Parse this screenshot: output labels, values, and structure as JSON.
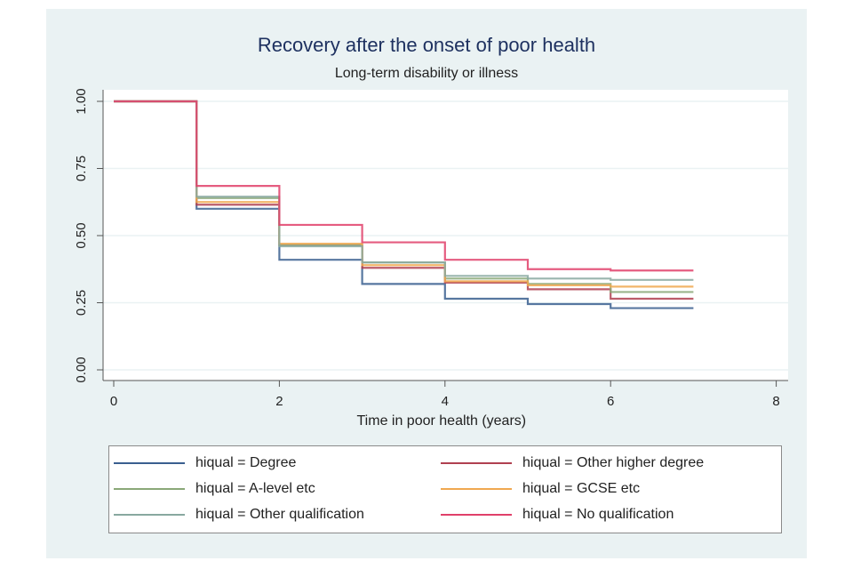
{
  "chart_data": {
    "type": "line",
    "subtype": "step",
    "title": "Recovery after the onset of poor health",
    "subtitle": "Long-term disability or illness",
    "xlabel": "Time in poor health (years)",
    "ylabel": "",
    "xlim": [
      0,
      8
    ],
    "ylim": [
      0,
      1
    ],
    "xticks": [
      0,
      2,
      4,
      6,
      8
    ],
    "xtick_labels": [
      "0",
      "2",
      "4",
      "6",
      "8"
    ],
    "yticks": [
      0,
      0.25,
      0.5,
      0.75,
      1.0
    ],
    "ytick_labels": [
      "0.00",
      "0.25",
      "0.50",
      "0.75",
      "1.00"
    ],
    "grid": true,
    "legend_position": "bottom",
    "x": [
      0,
      1,
      2,
      3,
      4,
      5,
      6,
      7
    ],
    "series": [
      {
        "name": "hiqual = Degree",
        "color": "#3a5f8f",
        "values": [
          1.0,
          0.6,
          0.41,
          0.32,
          0.265,
          0.245,
          0.23,
          0.23
        ]
      },
      {
        "name": "hiqual = Other higher degree",
        "color": "#b04050",
        "values": [
          1.0,
          0.615,
          0.465,
          0.38,
          0.325,
          0.3,
          0.265,
          0.265
        ]
      },
      {
        "name": "hiqual = A-level etc",
        "color": "#8aa878",
        "values": [
          1.0,
          0.64,
          0.465,
          0.4,
          0.34,
          0.32,
          0.29,
          0.29
        ]
      },
      {
        "name": "hiqual = GCSE etc",
        "color": "#f0a850",
        "values": [
          1.0,
          0.625,
          0.47,
          0.39,
          0.33,
          0.315,
          0.31,
          0.31
        ]
      },
      {
        "name": "hiqual = Other qualification",
        "color": "#88a8a0",
        "values": [
          1.0,
          0.645,
          0.46,
          0.4,
          0.35,
          0.34,
          0.335,
          0.335
        ]
      },
      {
        "name": "hiqual = No qualification",
        "color": "#e0406a",
        "values": [
          1.0,
          0.685,
          0.54,
          0.475,
          0.41,
          0.375,
          0.37,
          0.37
        ]
      }
    ]
  },
  "legend": {
    "items": [
      {
        "label": "hiqual = Degree",
        "color": "#3a5f8f"
      },
      {
        "label": "hiqual = Other higher degree",
        "color": "#b04050"
      },
      {
        "label": "hiqual = A-level etc",
        "color": "#8aa878"
      },
      {
        "label": "hiqual = GCSE etc",
        "color": "#f0a850"
      },
      {
        "label": "hiqual = Other qualification",
        "color": "#88a8a0"
      },
      {
        "label": "hiqual = No qualification",
        "color": "#e0406a"
      }
    ]
  }
}
